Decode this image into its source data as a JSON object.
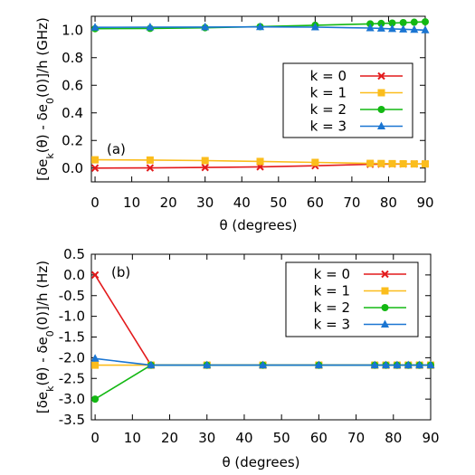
{
  "chart_data": [
    {
      "type": "line",
      "panel_label": "(a)",
      "xlabel": "θ (degrees)",
      "ylabel": "[δe_k(θ) - δe_0(0)]/h (GHz)",
      "xlim": [
        -1,
        90
      ],
      "ylim": [
        -0.1,
        1.1
      ],
      "xticks": [
        0,
        10,
        20,
        30,
        40,
        50,
        60,
        70,
        80,
        90
      ],
      "yticks": [
        0.0,
        0.2,
        0.4,
        0.6,
        0.8,
        1.0
      ],
      "ytick_labels": [
        "0.0",
        "0.2",
        "0.4",
        "0.6",
        "0.8",
        "1.0"
      ],
      "grid": false,
      "legend_position": "right-middle",
      "series": [
        {
          "name": "k = 0",
          "color": "#e31a1c",
          "marker": "cross",
          "x": [
            0,
            15,
            30,
            45,
            60,
            75,
            78,
            81,
            84,
            87,
            90
          ],
          "y": [
            0.0,
            0.001,
            0.004,
            0.009,
            0.017,
            0.027,
            0.028,
            0.029,
            0.029,
            0.03,
            0.03
          ]
        },
        {
          "name": "k = 1",
          "color": "#fbbd1c",
          "marker": "square",
          "x": [
            0,
            15,
            30,
            45,
            60,
            75,
            78,
            81,
            84,
            87,
            90
          ],
          "y": [
            0.06,
            0.058,
            0.054,
            0.048,
            0.041,
            0.034,
            0.033,
            0.032,
            0.031,
            0.03,
            0.03
          ]
        },
        {
          "name": "k = 2",
          "color": "#13b813",
          "marker": "circle",
          "x": [
            0,
            15,
            30,
            45,
            60,
            75,
            78,
            81,
            84,
            87,
            90
          ],
          "y": [
            1.01,
            1.012,
            1.017,
            1.025,
            1.035,
            1.045,
            1.048,
            1.051,
            1.054,
            1.057,
            1.06
          ]
        },
        {
          "name": "k = 3",
          "color": "#1a75d2",
          "marker": "triangle",
          "x": [
            0,
            15,
            30,
            45,
            60,
            75,
            78,
            81,
            84,
            87,
            90
          ],
          "y": [
            1.02,
            1.021,
            1.022,
            1.023,
            1.021,
            1.015,
            1.012,
            1.009,
            1.006,
            1.003,
            1.0
          ]
        }
      ]
    },
    {
      "type": "line",
      "panel_label": "(b)",
      "xlabel": "θ (degrees)",
      "ylabel": "[δe_k(θ) - δe_0(0)]/h (Hz)",
      "xlim": [
        -1,
        90
      ],
      "ylim": [
        -3.5,
        0.5
      ],
      "xticks": [
        0,
        10,
        20,
        30,
        40,
        50,
        60,
        70,
        80,
        90
      ],
      "yticks": [
        0.5,
        0.0,
        -0.5,
        -1.0,
        -1.5,
        -2.0,
        -2.5,
        -3.0,
        -3.5
      ],
      "ytick_labels": [
        "0.5",
        "0.0",
        "-0.5",
        "-1.0",
        "-1.5",
        "-2.0",
        "-2.5",
        "-3.0",
        "-3.5"
      ],
      "grid": false,
      "legend_position": "top-right",
      "series": [
        {
          "name": "k = 0",
          "color": "#e31a1c",
          "marker": "cross",
          "x": [
            0,
            15,
            30,
            45,
            60,
            75,
            78,
            81,
            84,
            87,
            90
          ],
          "y": [
            0.0,
            -2.18,
            -2.18,
            -2.18,
            -2.18,
            -2.18,
            -2.18,
            -2.18,
            -2.18,
            -2.18,
            -2.18
          ]
        },
        {
          "name": "k = 1",
          "color": "#fbbd1c",
          "marker": "square",
          "x": [
            0,
            15,
            30,
            45,
            60,
            75,
            78,
            81,
            84,
            87,
            90
          ],
          "y": [
            -2.18,
            -2.18,
            -2.18,
            -2.18,
            -2.18,
            -2.18,
            -2.18,
            -2.18,
            -2.18,
            -2.18,
            -2.18
          ]
        },
        {
          "name": "k = 2",
          "color": "#13b813",
          "marker": "circle",
          "x": [
            0,
            15,
            30,
            45,
            60,
            75,
            78,
            81,
            84,
            87,
            90
          ],
          "y": [
            -3.0,
            -2.18,
            -2.18,
            -2.18,
            -2.18,
            -2.18,
            -2.18,
            -2.18,
            -2.18,
            -2.18,
            -2.18
          ]
        },
        {
          "name": "k = 3",
          "color": "#1a75d2",
          "marker": "triangle",
          "x": [
            0,
            15,
            30,
            45,
            60,
            75,
            78,
            81,
            84,
            87,
            90
          ],
          "y": [
            -2.02,
            -2.18,
            -2.18,
            -2.18,
            -2.18,
            -2.18,
            -2.18,
            -2.18,
            -2.18,
            -2.18,
            -2.18
          ]
        }
      ]
    }
  ]
}
